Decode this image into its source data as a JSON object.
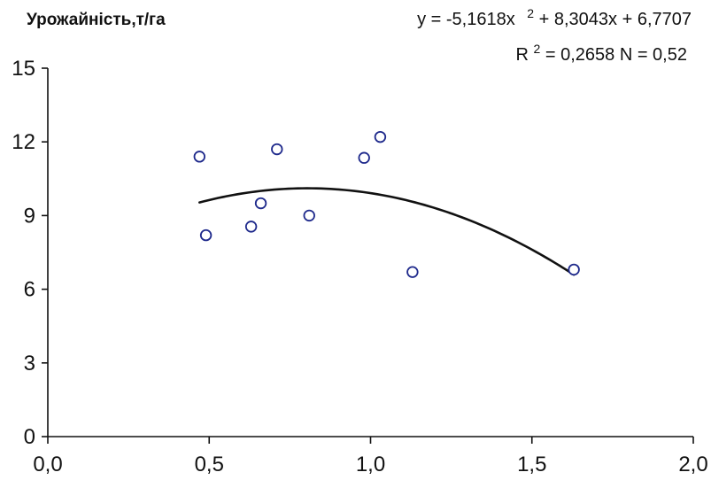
{
  "chart_data": {
    "type": "scatter",
    "ylabel": "Урожайність,т/га",
    "xlabel": "",
    "equation": {
      "line1": {
        "prefix": "y = -5,1618x",
        "exp": "2",
        "suffix": " + 8,3043x + 6,7707"
      },
      "line2": {
        "prefix": "R",
        "exp": "2",
        "suffix": " = 0,2658  N = 0,52"
      }
    },
    "xlim": [
      0,
      2
    ],
    "ylim": [
      0,
      15
    ],
    "x_ticks": [
      {
        "value": 0,
        "label": "0,0"
      },
      {
        "value": 0.5,
        "label": "0,5"
      },
      {
        "value": 1.0,
        "label": "1,0"
      },
      {
        "value": 1.5,
        "label": "1,5"
      },
      {
        "value": 2.0,
        "label": "2,0"
      }
    ],
    "y_ticks": [
      {
        "value": 0,
        "label": "0"
      },
      {
        "value": 3,
        "label": "3"
      },
      {
        "value": 6,
        "label": "6"
      },
      {
        "value": 9,
        "label": "9"
      },
      {
        "value": 12,
        "label": "12"
      },
      {
        "value": 15,
        "label": "15"
      }
    ],
    "points": [
      {
        "x": 0.47,
        "y": 11.4
      },
      {
        "x": 0.49,
        "y": 8.2
      },
      {
        "x": 0.63,
        "y": 8.55
      },
      {
        "x": 0.66,
        "y": 9.5
      },
      {
        "x": 0.71,
        "y": 11.7
      },
      {
        "x": 0.81,
        "y": 9.0
      },
      {
        "x": 0.98,
        "y": 11.35
      },
      {
        "x": 1.03,
        "y": 12.2
      },
      {
        "x": 1.13,
        "y": 6.7
      },
      {
        "x": 1.63,
        "y": 6.8
      }
    ],
    "trendline": {
      "type": "polynomial",
      "coefficients": [
        -5.1618,
        8.3043,
        6.7707
      ],
      "x_range": [
        0.47,
        1.63
      ]
    },
    "grid": false,
    "colors": {
      "marker": "#1f2a8c",
      "trendline": "#111111",
      "axis": "#111111"
    }
  }
}
